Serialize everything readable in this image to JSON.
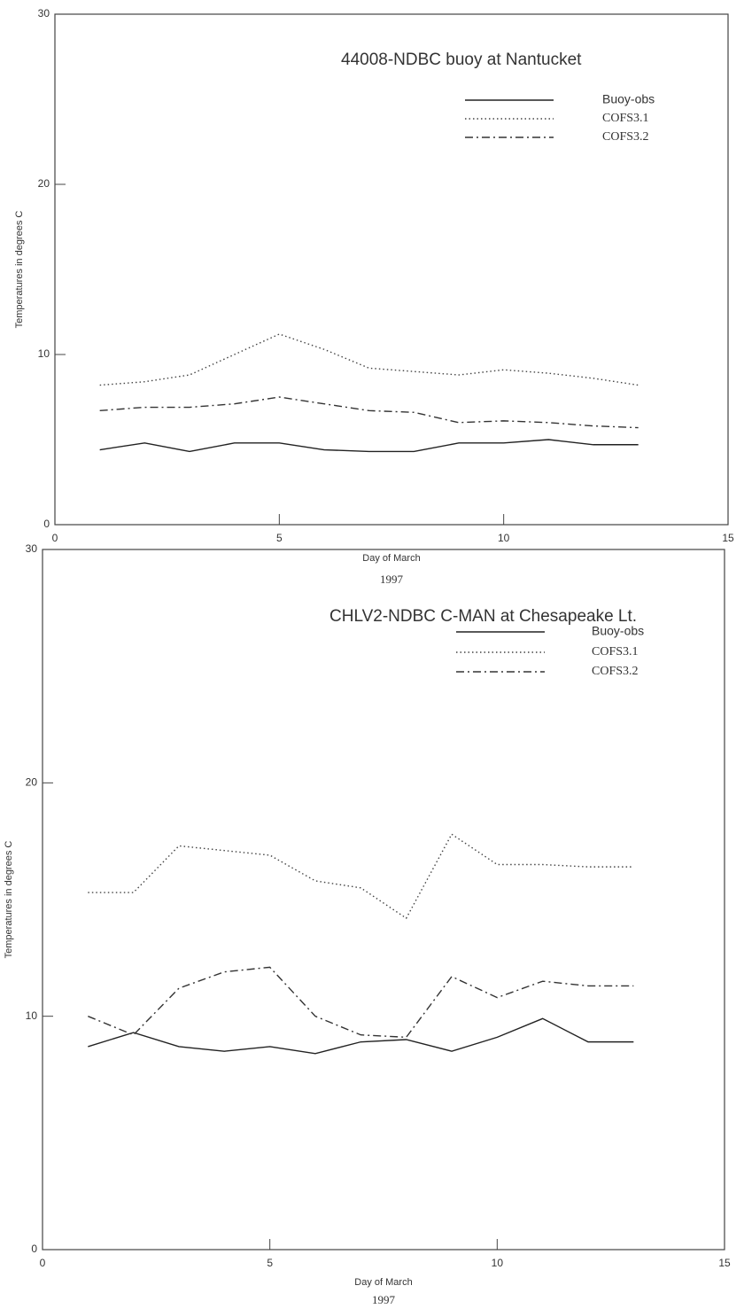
{
  "chart_data": [
    {
      "type": "line",
      "title": "44008-NDBC buoy at Nantucket",
      "xlabel": "Day of March",
      "xlabel_year": "1997",
      "ylabel": "Temperatures in degrees C",
      "x": [
        1,
        2,
        3,
        4,
        5,
        6,
        7,
        8,
        9,
        10,
        11,
        12,
        13
      ],
      "series": [
        {
          "name": "Buoy-obs",
          "color": "#222222",
          "style": "solid",
          "values": [
            4.4,
            4.8,
            4.3,
            4.8,
            4.8,
            4.4,
            4.3,
            4.3,
            4.8,
            4.8,
            5.0,
            4.7,
            4.7
          ]
        },
        {
          "name": "COFS3.1",
          "color": "#444444",
          "style": "dotted",
          "values": [
            8.2,
            8.4,
            8.8,
            10.0,
            11.2,
            10.3,
            9.2,
            9.0,
            8.8,
            9.1,
            8.9,
            8.6,
            8.2
          ]
        },
        {
          "name": "COFS3.2",
          "color": "#333333",
          "style": "dashdot",
          "values": [
            6.7,
            6.9,
            6.9,
            7.1,
            7.5,
            7.1,
            6.7,
            6.6,
            6.0,
            6.1,
            6.0,
            5.8,
            5.7
          ]
        }
      ],
      "xlim": [
        0,
        15
      ],
      "xticks": [
        0,
        5,
        10,
        15
      ],
      "ylim": [
        0,
        30
      ],
      "yticks": [
        0,
        10,
        20,
        30
      ],
      "grid": false
    },
    {
      "type": "line",
      "title": "CHLV2-NDBC C-MAN at Chesapeake Lt.",
      "xlabel": "Day of March",
      "xlabel_year": "1997",
      "ylabel": "Temperatures in degrees C",
      "x": [
        1,
        2,
        3,
        4,
        5,
        6,
        7,
        8,
        9,
        10,
        11,
        12,
        13
      ],
      "series": [
        {
          "name": "Buoy-obs",
          "color": "#222222",
          "style": "solid",
          "values": [
            8.7,
            9.3,
            8.7,
            8.5,
            8.7,
            8.4,
            8.9,
            9.0,
            8.5,
            9.1,
            9.9,
            8.9,
            8.9
          ]
        },
        {
          "name": "COFS3.1",
          "color": "#444444",
          "style": "dotted",
          "values": [
            15.3,
            15.3,
            17.3,
            17.1,
            16.9,
            15.8,
            15.5,
            14.2,
            17.8,
            16.5,
            16.5,
            16.4,
            16.4
          ]
        },
        {
          "name": "COFS3.2",
          "color": "#333333",
          "style": "dashdot",
          "values": [
            10.0,
            9.2,
            11.2,
            11.9,
            12.1,
            10.0,
            9.2,
            9.1,
            11.7,
            10.8,
            11.5,
            11.3,
            11.3
          ]
        }
      ],
      "xlim": [
        0,
        15
      ],
      "xticks": [
        0,
        5,
        10,
        15
      ],
      "ylim": [
        0,
        30
      ],
      "yticks": [
        0,
        10,
        20,
        30
      ],
      "grid": false
    }
  ]
}
